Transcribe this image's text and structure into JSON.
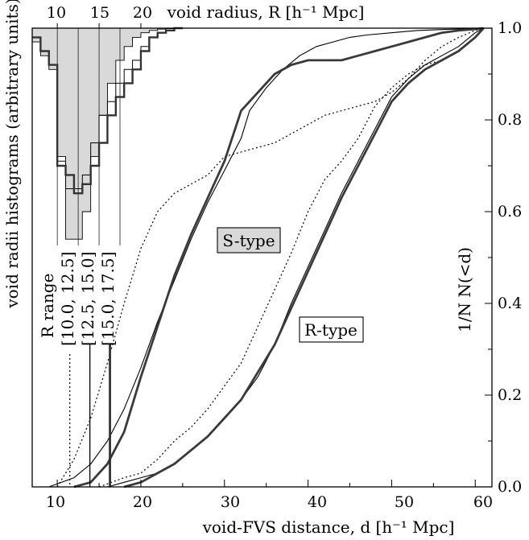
{
  "chart_data": {
    "type": "line",
    "bottom_axis": {
      "label": "void-FVS distance, d [h⁻¹ Mpc]",
      "ticks": [
        "10",
        "20",
        "30",
        "40",
        "50",
        "60"
      ],
      "range": [
        7,
        62
      ]
    },
    "right_axis": {
      "label": "1/N  N(<d)",
      "ticks": [
        "0.0",
        "0.2",
        "0.4",
        "0.6",
        "0.8",
        "1.0"
      ],
      "range": [
        0,
        1
      ]
    },
    "top_axis": {
      "label": "void radius, R [h⁻¹ Mpc]",
      "ticks": [
        "10",
        "15",
        "20"
      ]
    },
    "left_axis": {
      "label": "void radii histograms (arbitrary units)"
    },
    "r_range": {
      "title": "R range",
      "entries": [
        "[10.0, 12.5]",
        "[12.5, 15.0]",
        "[15.0, 17.5]"
      ],
      "marker_d": [
        11.5,
        13.9,
        16.3
      ]
    },
    "annotations": {
      "s_type": "S-type",
      "r_type": "R-type"
    },
    "histogram": {
      "bin_edges": [
        7,
        8,
        9,
        10,
        11,
        12,
        13,
        14,
        15,
        16,
        17,
        18,
        19,
        20,
        21,
        22,
        23,
        24,
        25
      ],
      "shaded_drop": [
        0.03,
        0.06,
        0.09,
        0.28,
        0.46,
        0.46,
        0.4,
        0.28,
        0.19,
        0.12,
        0.07,
        0.04,
        0.02,
        0.01,
        0.005,
        0.002,
        0.001,
        0
      ],
      "thin_drop": [
        0.02,
        0.05,
        0.08,
        0.29,
        0.35,
        0.35,
        0.32,
        0.25,
        0.19,
        0.16,
        0.12,
        0.09,
        0.07,
        0.04,
        0.02,
        0.01,
        0.005,
        0
      ],
      "thick_drop": [
        0.02,
        0.05,
        0.08,
        0.3,
        0.32,
        0.36,
        0.34,
        0.3,
        0.25,
        0.19,
        0.15,
        0.12,
        0.09,
        0.05,
        0.02,
        0.01,
        0.005,
        0
      ]
    },
    "series": [
      {
        "group": "S",
        "style": "dotted",
        "x": [
          10,
          12,
          14,
          16,
          18,
          20,
          22,
          24,
          26,
          28,
          30,
          32,
          34,
          36,
          38,
          40,
          42,
          44,
          46,
          48,
          50,
          52,
          54,
          56,
          58,
          60,
          61
        ],
        "y": [
          0.0,
          0.06,
          0.15,
          0.27,
          0.4,
          0.52,
          0.6,
          0.64,
          0.66,
          0.68,
          0.72,
          0.73,
          0.74,
          0.75,
          0.77,
          0.79,
          0.81,
          0.82,
          0.83,
          0.84,
          0.86,
          0.89,
          0.93,
          0.96,
          0.98,
          0.995,
          1.0
        ]
      },
      {
        "group": "S",
        "style": "thin",
        "x": [
          9,
          12,
          14,
          16,
          18,
          20,
          22,
          24,
          26,
          28,
          30,
          32,
          33,
          35,
          37,
          39,
          41,
          43,
          45,
          47,
          50,
          53,
          56,
          58,
          60,
          61
        ],
        "y": [
          0.0,
          0.02,
          0.05,
          0.1,
          0.17,
          0.26,
          0.36,
          0.45,
          0.54,
          0.62,
          0.69,
          0.76,
          0.82,
          0.87,
          0.91,
          0.94,
          0.96,
          0.97,
          0.98,
          0.985,
          0.99,
          0.995,
          0.997,
          0.998,
          0.999,
          1.0
        ]
      },
      {
        "group": "S",
        "style": "thick",
        "x": [
          12,
          14,
          16,
          18,
          20,
          22,
          24,
          26,
          28,
          30,
          32,
          34,
          36,
          38,
          40,
          42,
          44,
          46,
          48,
          50,
          52,
          54,
          56,
          58,
          60,
          61
        ],
        "y": [
          0.0,
          0.01,
          0.05,
          0.12,
          0.24,
          0.35,
          0.46,
          0.55,
          0.63,
          0.71,
          0.82,
          0.86,
          0.9,
          0.92,
          0.93,
          0.93,
          0.93,
          0.94,
          0.95,
          0.96,
          0.97,
          0.98,
          0.99,
          0.995,
          0.998,
          1.0
        ]
      },
      {
        "group": "R",
        "style": "dotted",
        "x": [
          15,
          18,
          20,
          22,
          24,
          26,
          28,
          30,
          32,
          34,
          36,
          38,
          40,
          42,
          44,
          46,
          48,
          50,
          52,
          54,
          56,
          58,
          60,
          61
        ],
        "y": [
          0.0,
          0.02,
          0.03,
          0.06,
          0.1,
          0.13,
          0.17,
          0.22,
          0.27,
          0.35,
          0.43,
          0.51,
          0.6,
          0.67,
          0.71,
          0.76,
          0.83,
          0.87,
          0.9,
          0.92,
          0.93,
          0.95,
          0.98,
          1.0
        ]
      },
      {
        "group": "R",
        "style": "thin",
        "x": [
          16,
          18,
          20,
          22,
          24,
          26,
          28,
          30,
          32,
          34,
          36,
          38,
          40,
          42,
          44,
          46,
          48,
          50,
          52,
          54,
          56,
          58,
          60,
          61
        ],
        "y": [
          0.0,
          0.01,
          0.02,
          0.03,
          0.05,
          0.08,
          0.11,
          0.15,
          0.19,
          0.24,
          0.31,
          0.4,
          0.48,
          0.56,
          0.64,
          0.71,
          0.78,
          0.85,
          0.89,
          0.92,
          0.94,
          0.96,
          0.99,
          1.0
        ]
      },
      {
        "group": "R",
        "style": "thick",
        "x": [
          18,
          20,
          22,
          24,
          26,
          28,
          30,
          32,
          34,
          36,
          38,
          40,
          42,
          44,
          46,
          48,
          50,
          52,
          54,
          56,
          58,
          60,
          61
        ],
        "y": [
          0.0,
          0.01,
          0.03,
          0.05,
          0.08,
          0.11,
          0.15,
          0.19,
          0.25,
          0.31,
          0.39,
          0.47,
          0.55,
          0.63,
          0.7,
          0.77,
          0.84,
          0.88,
          0.91,
          0.93,
          0.95,
          0.98,
          1.0
        ]
      }
    ]
  }
}
